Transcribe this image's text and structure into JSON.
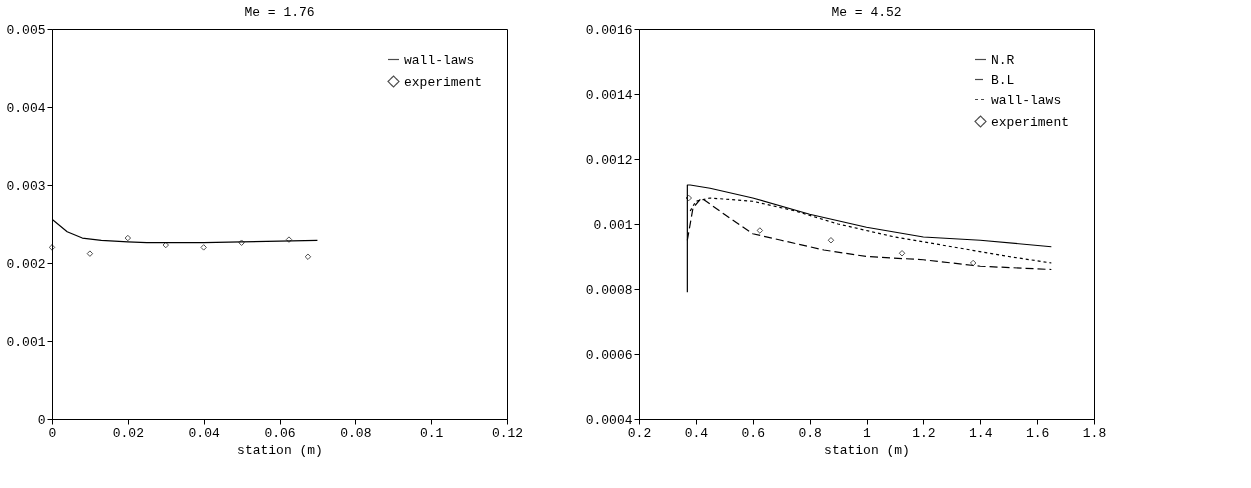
{
  "chart_data": [
    {
      "type": "line",
      "title": "Me = 1.76",
      "xlabel": "station (m)",
      "xlim": [
        0,
        0.12
      ],
      "xticks": [
        0,
        0.02,
        0.04,
        0.06,
        0.08,
        0.1,
        0.12
      ],
      "ylim": [
        0,
        0.005
      ],
      "yticks": [
        0,
        0.001,
        0.002,
        0.003,
        0.004,
        0.005
      ],
      "legend": "top right",
      "grid": false,
      "series": [
        {
          "name": "wall-laws",
          "line_style": "solid",
          "color": "#000000",
          "x": [
            0,
            0.004,
            0.008,
            0.013,
            0.02,
            0.025,
            0.03,
            0.04,
            0.05,
            0.06,
            0.07
          ],
          "values": [
            0.00256,
            0.0024,
            0.00232,
            0.00229,
            0.00227,
            0.00226,
            0.00226,
            0.00226,
            0.00227,
            0.00228,
            0.00229
          ]
        },
        {
          "name": "experiment",
          "type": "scatter",
          "marker": "diamond",
          "color": "#000000",
          "x": [
            0,
            0.01,
            0.02,
            0.03,
            0.04,
            0.05,
            0.0625,
            0.0675
          ],
          "values": [
            0.0022,
            0.00212,
            0.00232,
            0.00223,
            0.0022,
            0.00226,
            0.0023,
            0.00208
          ]
        }
      ]
    },
    {
      "type": "line",
      "title": "Me = 4.52",
      "xlabel": "station (m)",
      "xlim": [
        0.2,
        1.8
      ],
      "xticks": [
        0.2,
        0.4,
        0.6,
        0.8,
        1,
        1.2,
        1.4,
        1.6,
        1.8
      ],
      "ylim": [
        0.0004,
        0.0016
      ],
      "yticks": [
        0.0004,
        0.0006,
        0.0008,
        0.001,
        0.0012,
        0.0014,
        0.0016
      ],
      "legend": "top right",
      "grid": false,
      "series": [
        {
          "name": "N.R",
          "line_style": "solid",
          "color": "#000000",
          "x": [
            0.37,
            0.37,
            0.38,
            0.45,
            0.6,
            0.8,
            1.0,
            1.2,
            1.4,
            1.65
          ],
          "values": [
            0.00079,
            0.00112,
            0.00112,
            0.00111,
            0.00108,
            0.00103,
            0.00099,
            0.00096,
            0.00095,
            0.00093
          ]
        },
        {
          "name": "B.L",
          "line_style": "dashed",
          "color": "#000000",
          "x": [
            0.37,
            0.39,
            0.42,
            0.5,
            0.6,
            0.7,
            0.85,
            1.0,
            1.2,
            1.4,
            1.65
          ],
          "values": [
            0.00095,
            0.00105,
            0.00108,
            0.00103,
            0.00097,
            0.00095,
            0.00092,
            0.0009,
            0.00089,
            0.00087,
            0.00086
          ]
        },
        {
          "name": "wall-laws",
          "line_style": "dotted",
          "color": "#000000",
          "x": [
            0.38,
            0.4,
            0.45,
            0.6,
            0.75,
            0.9,
            1.1,
            1.3,
            1.5,
            1.65
          ],
          "values": [
            0.00104,
            0.00107,
            0.00108,
            0.00107,
            0.00104,
            0.001,
            0.00096,
            0.00093,
            0.0009,
            0.00088
          ]
        },
        {
          "name": "experiment",
          "type": "scatter",
          "marker": "diamond",
          "color": "#000000",
          "x": [
            0.375,
            0.625,
            0.875,
            1.125,
            1.375
          ],
          "values": [
            0.00108,
            0.00098,
            0.00095,
            0.00091,
            0.00088
          ]
        }
      ]
    }
  ]
}
